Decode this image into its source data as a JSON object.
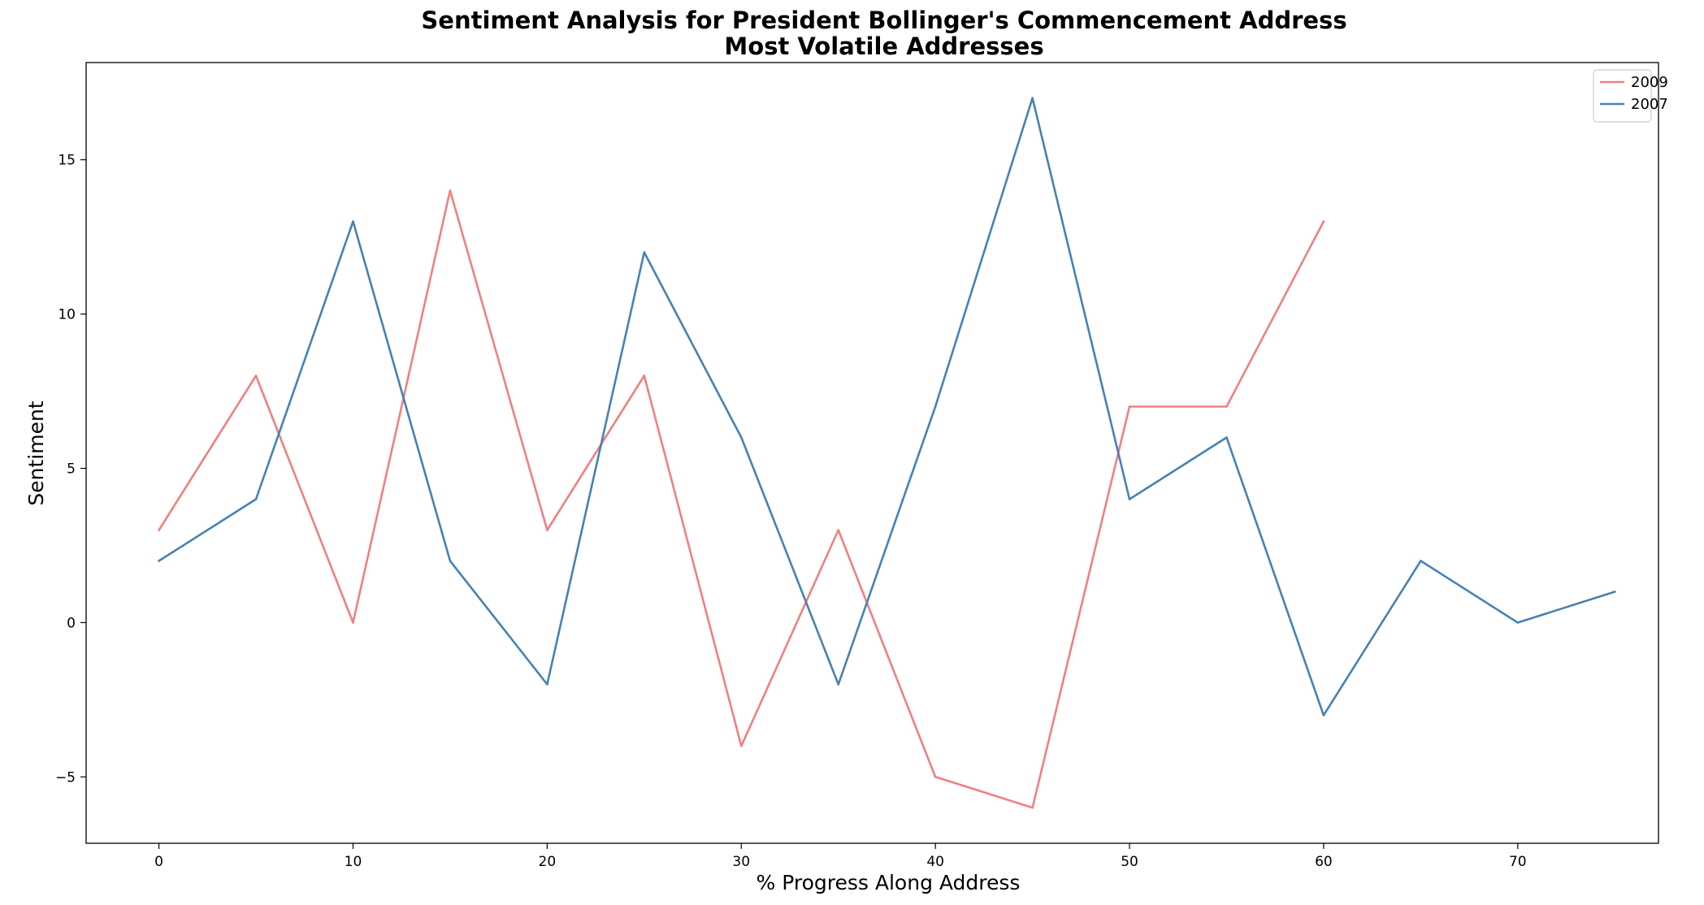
{
  "chart_data": {
    "type": "line",
    "title": "Sentiment Analysis for President Bollinger's Commencement Address",
    "subtitle": "Most Volatile Addresses",
    "xlabel": "% Progress Along Address",
    "ylabel": "Sentiment",
    "xlim": [
      -3.75,
      77.25
    ],
    "ylim": [
      -7.15,
      18.15
    ],
    "xticks": [
      0,
      10,
      20,
      30,
      40,
      50,
      60,
      70
    ],
    "yticks": [
      -5,
      0,
      5,
      10,
      15
    ],
    "grid": false,
    "legend_position": "top-right",
    "series": [
      {
        "name": "2009",
        "color": "#f08080",
        "x": [
          0,
          5,
          10,
          15,
          20,
          25,
          30,
          35,
          40,
          45,
          50,
          55,
          60
        ],
        "y": [
          3,
          8,
          0,
          14,
          3,
          8,
          -4,
          3,
          -5,
          -6,
          7,
          7,
          13
        ]
      },
      {
        "name": "2007",
        "color": "#4682b4",
        "x": [
          0,
          5,
          10,
          15,
          20,
          25,
          30,
          35,
          40,
          45,
          50,
          55,
          60,
          65,
          70,
          75
        ],
        "y": [
          2,
          4,
          13,
          2,
          -2,
          12,
          6,
          -2,
          7,
          17,
          4,
          6,
          -3,
          2,
          0,
          1
        ]
      }
    ]
  }
}
